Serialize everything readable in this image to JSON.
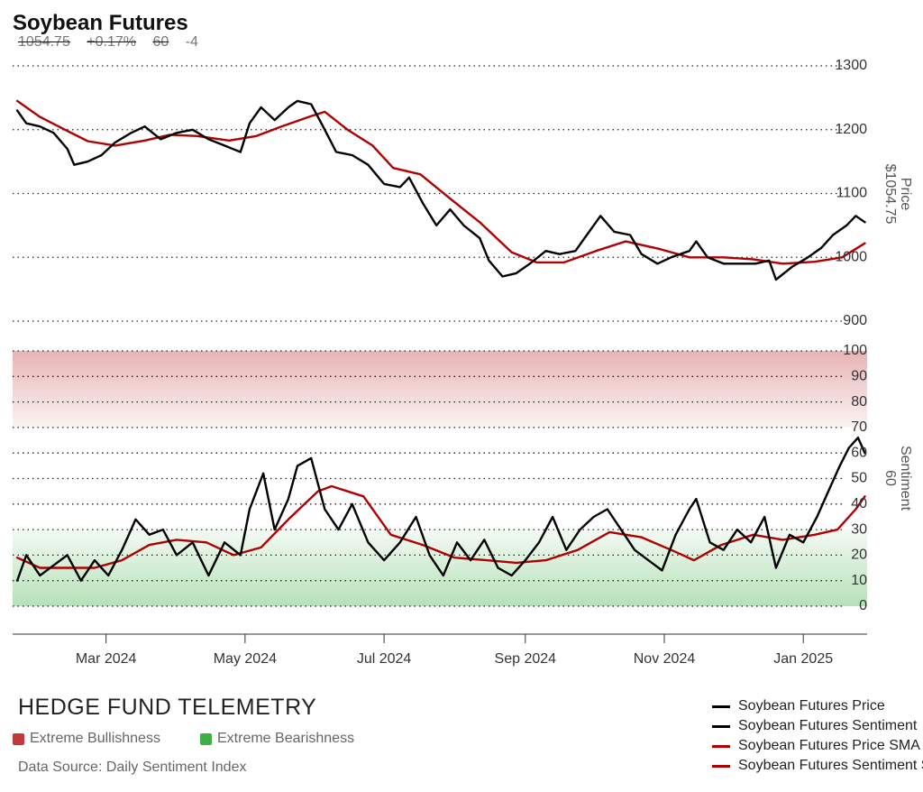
{
  "header": {
    "title": "Soybean Futures",
    "last": "1054.75",
    "change_pct": "+0.17%",
    "sentiment": "60",
    "sentiment_change": "-4"
  },
  "branding": {
    "name": "HEDGE FUND TELEMETRY",
    "bullish_label": "Extreme Bullishness",
    "bearish_label": "Extreme Bearishness",
    "bullish_color": "#c0393b",
    "bearish_color": "#3cb043",
    "source": "Data Source: Daily Sentiment Index"
  },
  "legend": [
    {
      "label": "Soybean Futures Price",
      "color": "#000000"
    },
    {
      "label": "Soybean Futures Sentiment",
      "color": "#000000"
    },
    {
      "label": "Soybean Futures Price SMA",
      "color": "#b00000"
    },
    {
      "label": "Soybean Futures Sentiment SMA",
      "color": "#b00000"
    }
  ],
  "chart_data": [
    {
      "type": "line",
      "panel": "price",
      "ylabel": "Price",
      "ylabel_value": "$1054.75",
      "ylim": [
        900,
        1300
      ],
      "yticks": [
        900,
        1000,
        1100,
        1200,
        1300
      ],
      "grid": "dotted horizontal",
      "series": [
        {
          "name": "Soybean Futures Price",
          "color": "#000000",
          "points": [
            [
              "2024-01-22",
              1230
            ],
            [
              "2024-01-26",
              1210
            ],
            [
              "2024-02-01",
              1205
            ],
            [
              "2024-02-07",
              1195
            ],
            [
              "2024-02-13",
              1170
            ],
            [
              "2024-02-16",
              1145
            ],
            [
              "2024-02-22",
              1150
            ],
            [
              "2024-02-28",
              1160
            ],
            [
              "2024-03-05",
              1180
            ],
            [
              "2024-03-12",
              1195
            ],
            [
              "2024-03-18",
              1205
            ],
            [
              "2024-03-25",
              1185
            ],
            [
              "2024-04-01",
              1195
            ],
            [
              "2024-04-08",
              1200
            ],
            [
              "2024-04-15",
              1185
            ],
            [
              "2024-04-22",
              1175
            ],
            [
              "2024-04-29",
              1165
            ],
            [
              "2024-05-03",
              1210
            ],
            [
              "2024-05-08",
              1235
            ],
            [
              "2024-05-14",
              1215
            ],
            [
              "2024-05-20",
              1235
            ],
            [
              "2024-05-24",
              1245
            ],
            [
              "2024-05-30",
              1240
            ],
            [
              "2024-06-05",
              1200
            ],
            [
              "2024-06-10",
              1165
            ],
            [
              "2024-06-17",
              1160
            ],
            [
              "2024-06-24",
              1145
            ],
            [
              "2024-07-01",
              1115
            ],
            [
              "2024-07-08",
              1110
            ],
            [
              "2024-07-12",
              1125
            ],
            [
              "2024-07-18",
              1085
            ],
            [
              "2024-07-24",
              1050
            ],
            [
              "2024-07-30",
              1075
            ],
            [
              "2024-08-05",
              1050
            ],
            [
              "2024-08-12",
              1030
            ],
            [
              "2024-08-16",
              995
            ],
            [
              "2024-08-22",
              970
            ],
            [
              "2024-08-28",
              975
            ],
            [
              "2024-09-03",
              990
            ],
            [
              "2024-09-10",
              1010
            ],
            [
              "2024-09-16",
              1005
            ],
            [
              "2024-09-23",
              1010
            ],
            [
              "2024-09-30",
              1045
            ],
            [
              "2024-10-04",
              1065
            ],
            [
              "2024-10-10",
              1040
            ],
            [
              "2024-10-17",
              1035
            ],
            [
              "2024-10-22",
              1005
            ],
            [
              "2024-10-29",
              990
            ],
            [
              "2024-11-04",
              1000
            ],
            [
              "2024-11-12",
              1010
            ],
            [
              "2024-11-15",
              1025
            ],
            [
              "2024-11-20",
              1000
            ],
            [
              "2024-11-27",
              990
            ],
            [
              "2024-12-04",
              990
            ],
            [
              "2024-12-11",
              990
            ],
            [
              "2024-12-17",
              995
            ],
            [
              "2024-12-20",
              965
            ],
            [
              "2024-12-27",
              985
            ],
            [
              "2025-01-03",
              1000
            ],
            [
              "2025-01-09",
              1015
            ],
            [
              "2025-01-14",
              1035
            ],
            [
              "2025-01-20",
              1050
            ],
            [
              "2025-01-24",
              1065
            ],
            [
              "2025-01-28",
              1055
            ]
          ]
        },
        {
          "name": "Soybean Futures Price SMA",
          "color": "#b00000",
          "points": [
            [
              "2024-01-22",
              1245
            ],
            [
              "2024-02-01",
              1220
            ],
            [
              "2024-02-12",
              1200
            ],
            [
              "2024-02-22",
              1182
            ],
            [
              "2024-03-05",
              1175
            ],
            [
              "2024-03-18",
              1183
            ],
            [
              "2024-03-29",
              1192
            ],
            [
              "2024-04-10",
              1190
            ],
            [
              "2024-04-24",
              1183
            ],
            [
              "2024-05-06",
              1190
            ],
            [
              "2024-05-17",
              1205
            ],
            [
              "2024-05-29",
              1220
            ],
            [
              "2024-06-05",
              1228
            ],
            [
              "2024-06-15",
              1200
            ],
            [
              "2024-06-26",
              1175
            ],
            [
              "2024-07-05",
              1140
            ],
            [
              "2024-07-17",
              1130
            ],
            [
              "2024-07-30",
              1092
            ],
            [
              "2024-08-12",
              1055
            ],
            [
              "2024-08-26",
              1008
            ],
            [
              "2024-09-06",
              992
            ],
            [
              "2024-09-18",
              992
            ],
            [
              "2024-10-02",
              1010
            ],
            [
              "2024-10-15",
              1025
            ],
            [
              "2024-10-30",
              1013
            ],
            [
              "2024-11-12",
              1000
            ],
            [
              "2024-11-27",
              1000
            ],
            [
              "2024-12-10",
              997
            ],
            [
              "2024-12-23",
              990
            ],
            [
              "2025-01-06",
              993
            ],
            [
              "2025-01-18",
              1000
            ],
            [
              "2025-01-28",
              1022
            ]
          ]
        }
      ]
    },
    {
      "type": "line",
      "panel": "sentiment",
      "ylabel": "Sentiment",
      "ylabel_value": "60",
      "ylim": [
        0,
        100
      ],
      "yticks": [
        0,
        10,
        20,
        30,
        40,
        50,
        60,
        70,
        80,
        90,
        100
      ],
      "bands": [
        {
          "name": "Extreme Bullishness",
          "from": 70,
          "to": 100,
          "color": "#c0393b"
        },
        {
          "name": "Extreme Bearishness",
          "from": 0,
          "to": 30,
          "color": "#3cb043"
        }
      ],
      "xticks": [
        "Mar 2024",
        "May 2024",
        "Jul 2024",
        "Sep 2024",
        "Nov 2024",
        "Jan 2025"
      ],
      "series": [
        {
          "name": "Soybean Futures Sentiment",
          "color": "#000000",
          "points": [
            [
              "2024-01-22",
              10
            ],
            [
              "2024-01-26",
              20
            ],
            [
              "2024-02-01",
              12
            ],
            [
              "2024-02-07",
              16
            ],
            [
              "2024-02-13",
              20
            ],
            [
              "2024-02-19",
              10
            ],
            [
              "2024-02-25",
              18
            ],
            [
              "2024-03-02",
              12
            ],
            [
              "2024-03-08",
              22
            ],
            [
              "2024-03-14",
              34
            ],
            [
              "2024-03-20",
              28
            ],
            [
              "2024-03-26",
              30
            ],
            [
              "2024-04-01",
              20
            ],
            [
              "2024-04-08",
              25
            ],
            [
              "2024-04-15",
              12
            ],
            [
              "2024-04-22",
              25
            ],
            [
              "2024-04-29",
              20
            ],
            [
              "2024-05-03",
              38
            ],
            [
              "2024-05-09",
              52
            ],
            [
              "2024-05-14",
              30
            ],
            [
              "2024-05-20",
              42
            ],
            [
              "2024-05-24",
              55
            ],
            [
              "2024-05-30",
              58
            ],
            [
              "2024-06-05",
              38
            ],
            [
              "2024-06-11",
              30
            ],
            [
              "2024-06-17",
              40
            ],
            [
              "2024-06-24",
              25
            ],
            [
              "2024-07-01",
              18
            ],
            [
              "2024-07-08",
              25
            ],
            [
              "2024-07-15",
              35
            ],
            [
              "2024-07-21",
              20
            ],
            [
              "2024-07-27",
              12
            ],
            [
              "2024-08-02",
              25
            ],
            [
              "2024-08-08",
              18
            ],
            [
              "2024-08-14",
              26
            ],
            [
              "2024-08-20",
              15
            ],
            [
              "2024-08-26",
              12
            ],
            [
              "2024-09-01",
              18
            ],
            [
              "2024-09-07",
              25
            ],
            [
              "2024-09-13",
              35
            ],
            [
              "2024-09-19",
              22
            ],
            [
              "2024-09-25",
              30
            ],
            [
              "2024-10-01",
              35
            ],
            [
              "2024-10-07",
              38
            ],
            [
              "2024-10-13",
              30
            ],
            [
              "2024-10-19",
              22
            ],
            [
              "2024-10-25",
              18
            ],
            [
              "2024-10-31",
              14
            ],
            [
              "2024-11-06",
              28
            ],
            [
              "2024-11-12",
              38
            ],
            [
              "2024-11-15",
              42
            ],
            [
              "2024-11-21",
              25
            ],
            [
              "2024-11-27",
              22
            ],
            [
              "2024-12-03",
              30
            ],
            [
              "2024-12-09",
              25
            ],
            [
              "2024-12-15",
              35
            ],
            [
              "2024-12-20",
              15
            ],
            [
              "2024-12-26",
              28
            ],
            [
              "2025-01-01",
              25
            ],
            [
              "2025-01-07",
              35
            ],
            [
              "2025-01-12",
              45
            ],
            [
              "2025-01-17",
              55
            ],
            [
              "2025-01-21",
              62
            ],
            [
              "2025-01-25",
              66
            ],
            [
              "2025-01-28",
              60
            ]
          ]
        },
        {
          "name": "Soybean Futures Sentiment SMA",
          "color": "#b00000",
          "points": [
            [
              "2024-01-22",
              19
            ],
            [
              "2024-02-01",
              15
            ],
            [
              "2024-02-12",
              15
            ],
            [
              "2024-02-25",
              15
            ],
            [
              "2024-03-08",
              18
            ],
            [
              "2024-03-20",
              24
            ],
            [
              "2024-04-01",
              26
            ],
            [
              "2024-04-14",
              25
            ],
            [
              "2024-04-26",
              20
            ],
            [
              "2024-05-08",
              23
            ],
            [
              "2024-05-20",
              34
            ],
            [
              "2024-06-02",
              45
            ],
            [
              "2024-06-08",
              47
            ],
            [
              "2024-06-22",
              43
            ],
            [
              "2024-07-04",
              28
            ],
            [
              "2024-07-18",
              24
            ],
            [
              "2024-08-01",
              19
            ],
            [
              "2024-08-15",
              18
            ],
            [
              "2024-08-28",
              17
            ],
            [
              "2024-09-10",
              18
            ],
            [
              "2024-09-24",
              22
            ],
            [
              "2024-10-08",
              29
            ],
            [
              "2024-10-22",
              27
            ],
            [
              "2024-11-04",
              22
            ],
            [
              "2024-11-14",
              18
            ],
            [
              "2024-11-26",
              24
            ],
            [
              "2024-12-10",
              28
            ],
            [
              "2024-12-23",
              26
            ],
            [
              "2025-01-06",
              28
            ],
            [
              "2025-01-16",
              30
            ],
            [
              "2025-01-24",
              38
            ],
            [
              "2025-01-28",
              43
            ]
          ]
        }
      ]
    }
  ]
}
